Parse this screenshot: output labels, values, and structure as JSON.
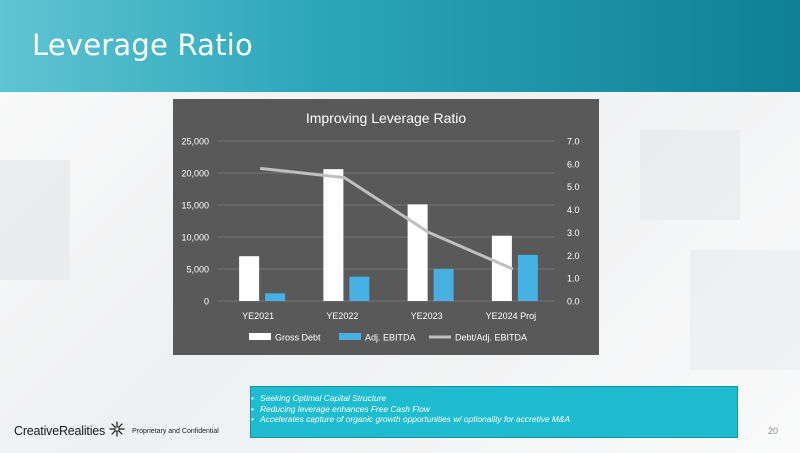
{
  "slide": {
    "title": "Leverage Ratio",
    "page_number": "20"
  },
  "colors": {
    "header_start": "#5fc4d3",
    "header_end": "#0f8093",
    "chart_bg": "#595959",
    "gross_debt": "#ffffff",
    "adj_ebitda": "#45b0e1",
    "ratio_line": "#bfbfbf",
    "callout_bg": "#1fbcd0"
  },
  "chart_data": {
    "type": "bar",
    "title": "Improving Leverage Ratio",
    "categories": [
      "YE2021",
      "YE2022",
      "YE2023",
      "YE2024 Proj"
    ],
    "series": [
      {
        "name": "Gross Debt",
        "type": "bar",
        "axis": "left",
        "values": [
          7000,
          20600,
          15100,
          10200
        ]
      },
      {
        "name": "Adj. EBITDA",
        "type": "bar",
        "axis": "left",
        "values": [
          1200,
          3800,
          5000,
          7200
        ]
      },
      {
        "name": "Debt/Adj. EBITDA",
        "type": "line",
        "axis": "right",
        "values": [
          5.8,
          5.4,
          3.0,
          1.4
        ]
      }
    ],
    "ylim_left": [
      0,
      25000
    ],
    "ylim_right": [
      0,
      7.0
    ],
    "left_ticks": [
      "0",
      "5,000",
      "10,000",
      "15,000",
      "20,000",
      "25,000"
    ],
    "left_tick_values": [
      0,
      5000,
      10000,
      15000,
      20000,
      25000
    ],
    "right_ticks": [
      "0.0",
      "1.0",
      "2.0",
      "3.0",
      "4.0",
      "5.0",
      "6.0",
      "7.0"
    ],
    "right_tick_values": [
      0,
      1,
      2,
      3,
      4,
      5,
      6,
      7
    ],
    "legend": [
      "Gross Debt",
      "Adj. EBITDA",
      "Debt/Adj. EBITDA"
    ],
    "legend_position": "bottom",
    "grid": true
  },
  "callout": {
    "bullets": [
      "Seeking Optimal Capital Structure",
      "Reducing leverage enhances Free Cash Flow",
      "Accelerates capture of organic growth opportunities w/ optionality for accretive M&A"
    ]
  },
  "footer": {
    "company": "CreativeRealities",
    "confidential": "Proprietary and Confidential"
  }
}
